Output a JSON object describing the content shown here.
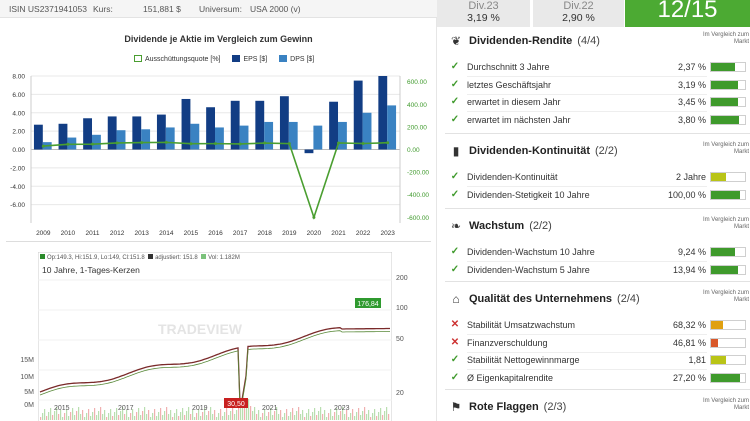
{
  "topbar": {
    "isin": "ISIN US2371941053",
    "kurs_label": "Kurs:",
    "kurs_value": "151,881 $",
    "universe_label": "Universum:",
    "universe_value": "USA 2000 (v)"
  },
  "scores": {
    "div23_label": "Div.23",
    "div23_value": "3,19 %",
    "div22_label": "Div.22",
    "div22_value": "2,90 %",
    "score": "12/15"
  },
  "chart_data": {
    "type": "bar",
    "title": "Dividende je Aktie im Vergleich zum Gewinn",
    "legend": [
      "Ausschüttungsquote [%]",
      "EPS [$]",
      "DPS [$]"
    ],
    "categories": [
      "2009",
      "2010",
      "2011",
      "2012",
      "2013",
      "2014",
      "2015",
      "2016",
      "2017",
      "2018",
      "2019",
      "2020",
      "2021",
      "2022",
      "2023"
    ],
    "series": [
      {
        "name": "EPS [$]",
        "color": "#123d84",
        "values": [
          2.7,
          2.8,
          3.4,
          3.6,
          3.6,
          3.8,
          5.5,
          4.6,
          5.3,
          5.3,
          5.8,
          -0.4,
          5.2,
          7.5,
          8.0
        ]
      },
      {
        "name": "DPS [$]",
        "color": "#3a82c2",
        "values": [
          0.8,
          1.3,
          1.6,
          2.1,
          2.2,
          2.4,
          2.8,
          2.4,
          2.6,
          3.0,
          3.0,
          2.6,
          3.0,
          4.0,
          4.8
        ]
      },
      {
        "name": "Ausschüttungsquote [%]",
        "color": "#4a9e30",
        "axis": "right",
        "values": [
          30,
          46,
          47,
          58,
          61,
          63,
          51,
          52,
          49,
          57,
          52,
          -600,
          58,
          53,
          60
        ]
      }
    ],
    "yleft_ticks": [
      "8.00",
      "6.00",
      "4.00",
      "2.00",
      "0.00",
      "-2.00",
      "-4.00",
      "-6.00"
    ],
    "yright_ticks": [
      "600.00",
      "400.00",
      "200.00",
      "0.00",
      "-200.00",
      "-400.00",
      "-600.00"
    ],
    "ylim_left": [
      -8,
      8
    ],
    "ylim_right": [
      -650,
      650
    ],
    "grid": true
  },
  "price_chart": {
    "legend_ohlc": "Op:149.3, Hi:151.9, Lo:149, Cl:151.8",
    "legend_adj": "adjustiert: 151.8",
    "legend_vol": "Vol: 1.182M",
    "subtitle": "10 Jahre, 1-Tages-Kerzen",
    "watermark": "TRADEVIEW",
    "max_label": "176,84",
    "min_label": "30,50",
    "x_ticks": [
      "2015",
      "2017",
      "2019",
      "2021",
      "2023"
    ],
    "y_right_ticks": [
      "200",
      "100",
      "50",
      "20"
    ],
    "vol_ticks": [
      "15M",
      "10M",
      "5M",
      "0M"
    ]
  },
  "sections": [
    {
      "icon": "hand-holding-icon",
      "glyph": "❦",
      "title": "Dividenden-Rendite",
      "count": "(4/4)",
      "vgl": "Im Vergleich zum Markt",
      "rows": [
        {
          "label": "Durchschnitt 3 Jahre",
          "value": "2,37 %",
          "status": "ok",
          "fill": 0.7,
          "color": "#3f9a2c"
        },
        {
          "label": "letztes Geschäftsjahr",
          "value": "3,19 %",
          "status": "ok",
          "fill": 0.78,
          "color": "#3f9a2c"
        },
        {
          "label": "erwartet in diesem Jahr",
          "value": "3,45 %",
          "status": "ok",
          "fill": 0.8,
          "color": "#3f9a2c"
        },
        {
          "label": "erwartet im nächsten Jahr",
          "value": "3,80 %",
          "status": "ok",
          "fill": 0.82,
          "color": "#3f9a2c"
        }
      ]
    },
    {
      "icon": "bar-chart-icon",
      "glyph": "▮",
      "title": "Dividenden-Kontinuität",
      "count": "(2/2)",
      "vgl": "Im Vergleich zum Markt",
      "rows": [
        {
          "label": "Dividenden-Kontinuität",
          "value": "2 Jahre",
          "status": "ok",
          "fill": 0.45,
          "color": "#b9c417"
        },
        {
          "label": "Dividenden-Stetigkeit 10 Jahre",
          "value": "100,00 %",
          "status": "ok",
          "fill": 0.85,
          "color": "#3f9a2c"
        }
      ]
    },
    {
      "icon": "sprout-icon",
      "glyph": "❧",
      "title": "Wachstum",
      "count": "(2/2)",
      "vgl": "Im Vergleich zum Markt",
      "rows": [
        {
          "label": "Dividenden-Wachstum 10 Jahre",
          "value": "9,24 %",
          "status": "ok",
          "fill": 0.72,
          "color": "#3f9a2c"
        },
        {
          "label": "Dividenden-Wachstum 5 Jahre",
          "value": "13,94 %",
          "status": "ok",
          "fill": 0.8,
          "color": "#3f9a2c"
        }
      ]
    },
    {
      "icon": "bank-icon",
      "glyph": "⌂",
      "title": "Qualität des Unternehmens",
      "count": "(2/4)",
      "vgl": "Im Vergleich zum Markt",
      "rows": [
        {
          "label": "Stabilität Umsatzwachstum",
          "value": "68,32 %",
          "status": "bad",
          "fill": 0.35,
          "color": "#e0a010"
        },
        {
          "label": "Finanzverschuldung",
          "value": "46,81 %",
          "status": "bad",
          "fill": 0.2,
          "color": "#d9582a"
        },
        {
          "label": "Stabilität Nettogewinnmarge",
          "value": "1,81",
          "status": "ok",
          "fill": 0.45,
          "color": "#b9c417"
        },
        {
          "label": "Ø Eigenkapitalrendite",
          "value": "27,20 %",
          "status": "ok",
          "fill": 0.85,
          "color": "#3f9a2c"
        }
      ]
    },
    {
      "icon": "flag-icon",
      "glyph": "⚑",
      "title": "Rote Flaggen",
      "count": "(2/3)",
      "vgl": "Im Vergleich zum Markt",
      "rows": []
    }
  ]
}
